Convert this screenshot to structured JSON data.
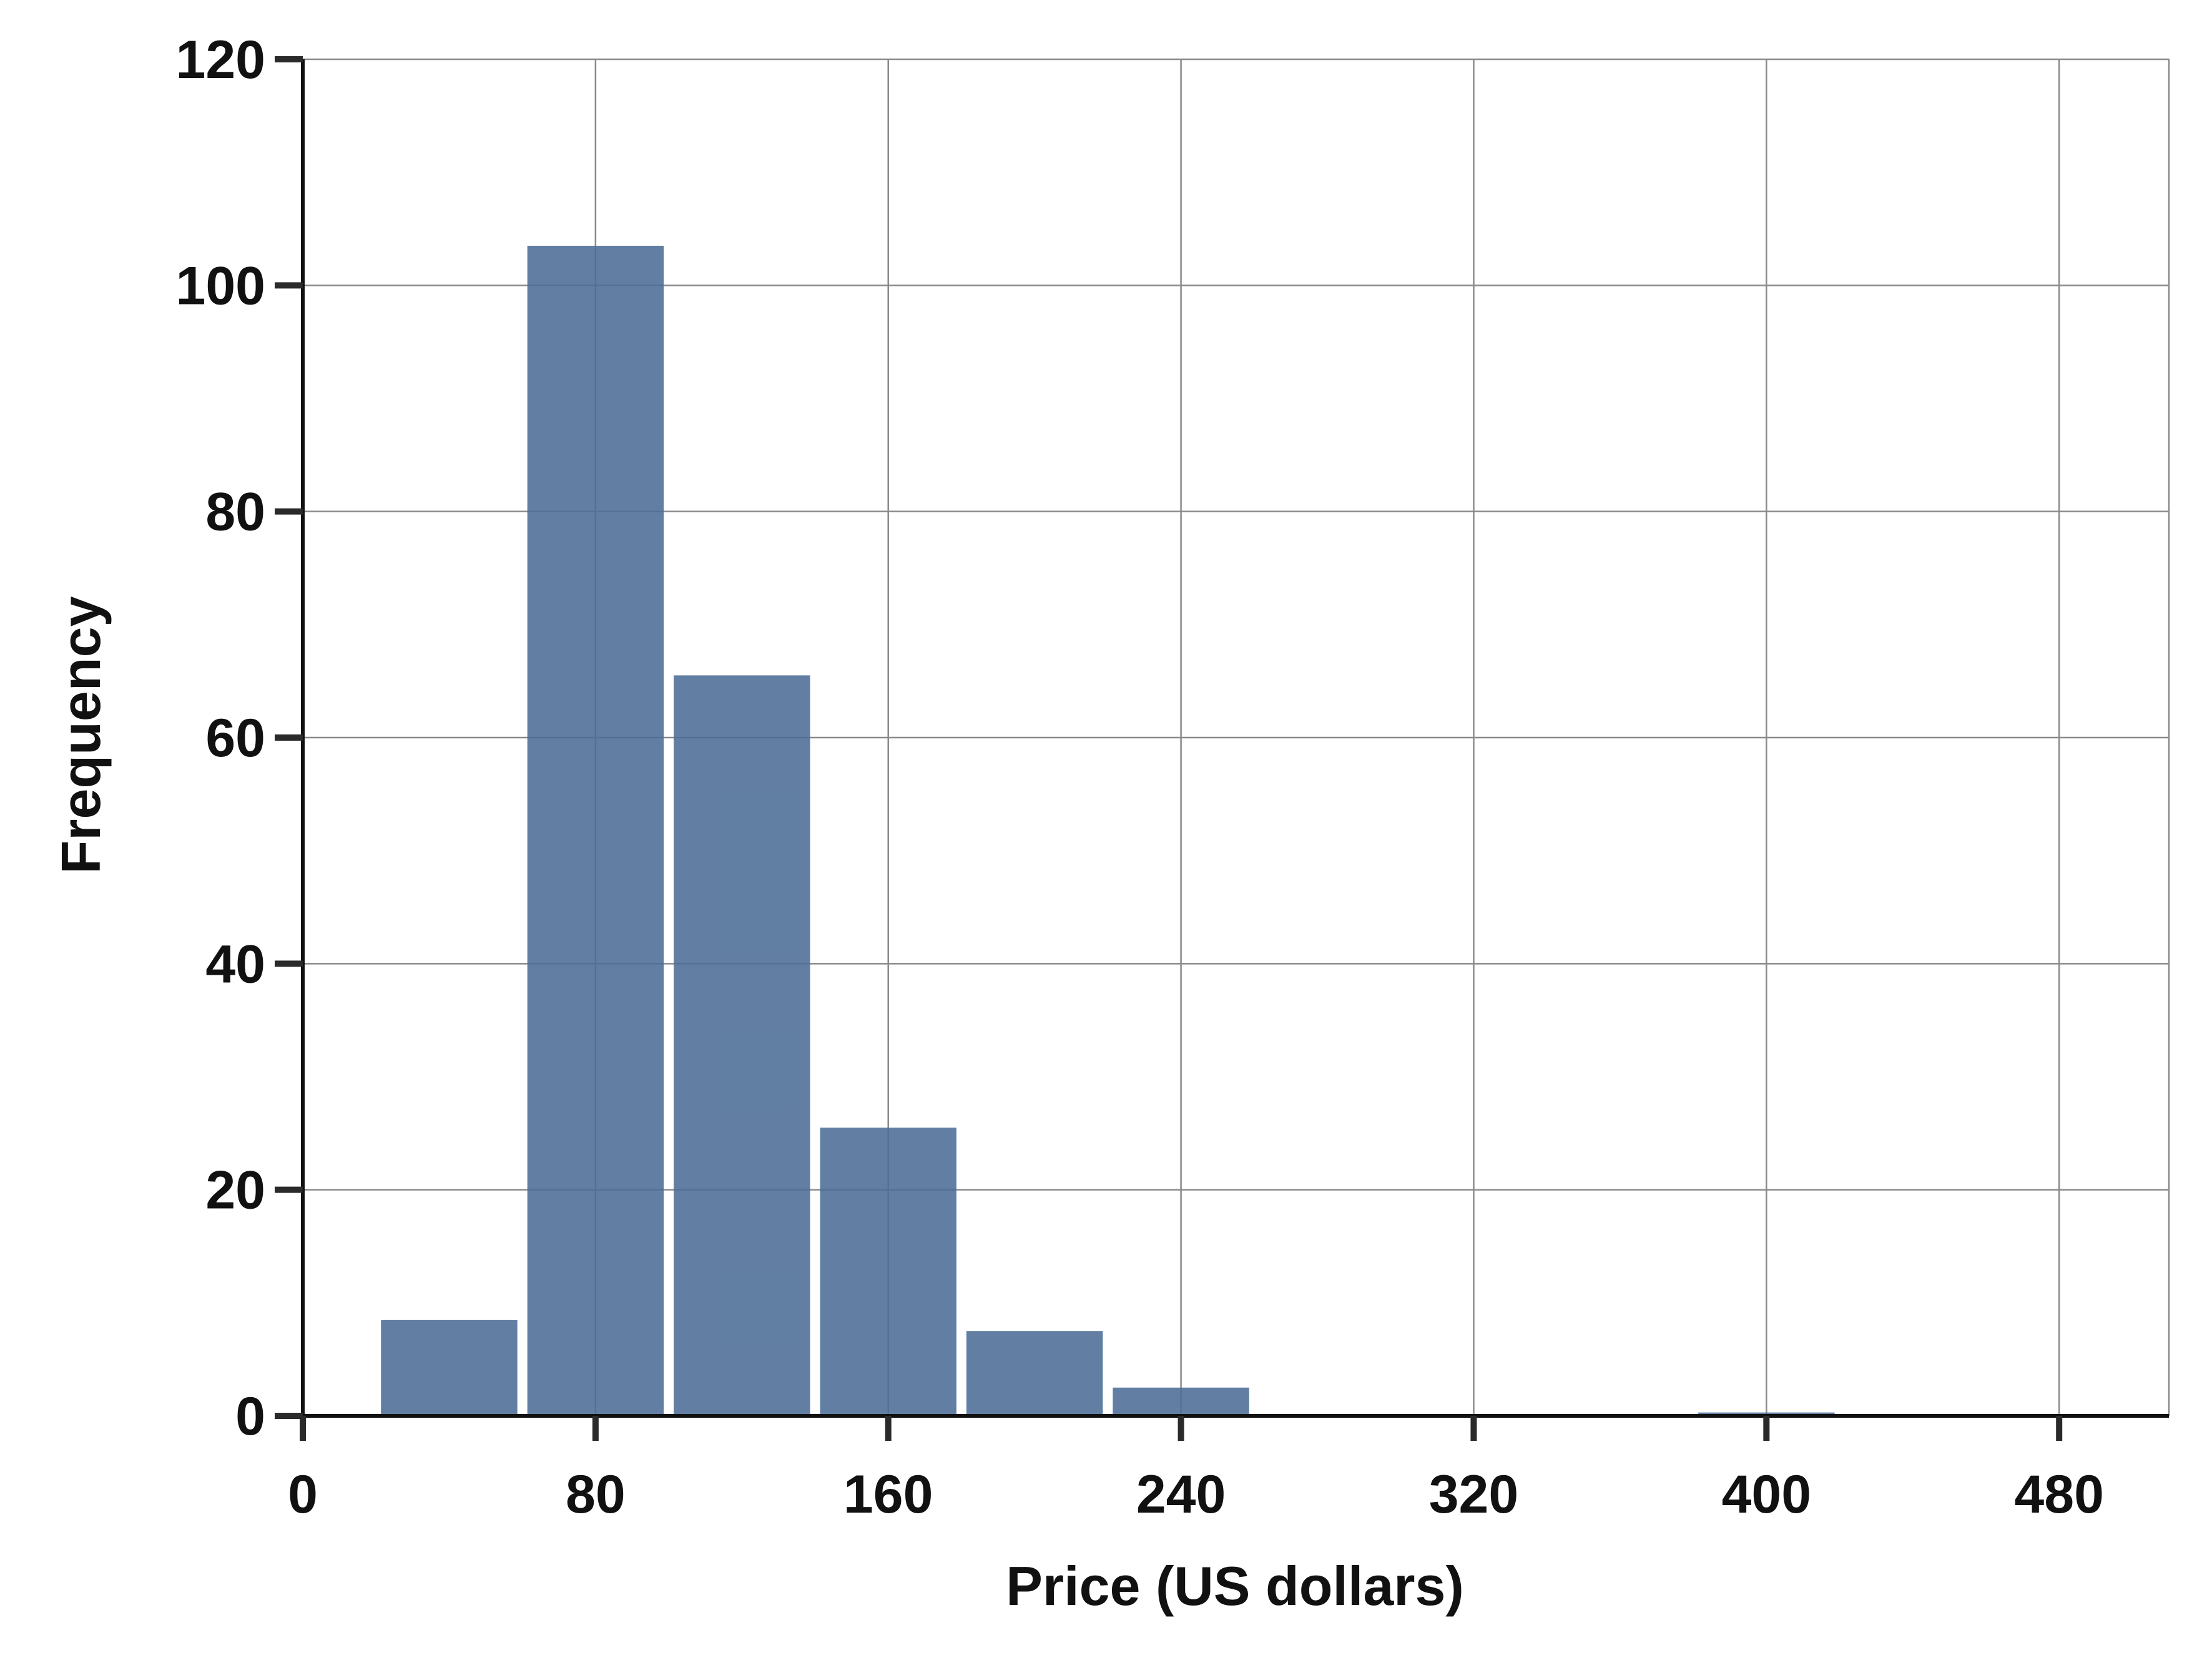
{
  "chart_data": {
    "type": "bar",
    "subtype": "histogram",
    "bins": [
      {
        "x0": 20,
        "x1": 60,
        "value": 8.5
      },
      {
        "x0": 60,
        "x1": 100,
        "value": 103.5
      },
      {
        "x0": 100,
        "x1": 140,
        "value": 65.5
      },
      {
        "x0": 140,
        "x1": 180,
        "value": 25.5
      },
      {
        "x0": 180,
        "x1": 220,
        "value": 7.5
      },
      {
        "x0": 220,
        "x1": 260,
        "value": 2.5
      },
      {
        "x0": 380,
        "x1": 420,
        "value": 0.3
      }
    ],
    "xlabel": "Price (US dollars)",
    "ylabel": "Frequency",
    "xlim": [
      0,
      510
    ],
    "ylim": [
      0,
      120
    ],
    "xticks": [
      0,
      80,
      160,
      240,
      320,
      400,
      480
    ],
    "yticks": [
      0,
      20,
      40,
      60,
      80,
      100,
      120
    ],
    "xtick_labels": [
      "0",
      "80",
      "160",
      "240",
      "320",
      "400",
      "480"
    ],
    "ytick_labels": [
      "0",
      "20",
      "40",
      "60",
      "80",
      "100",
      "120"
    ],
    "grid": true,
    "bar_color": "#4c6d96",
    "grid_color": "#8a8a8a",
    "axis_color": "#111111"
  }
}
